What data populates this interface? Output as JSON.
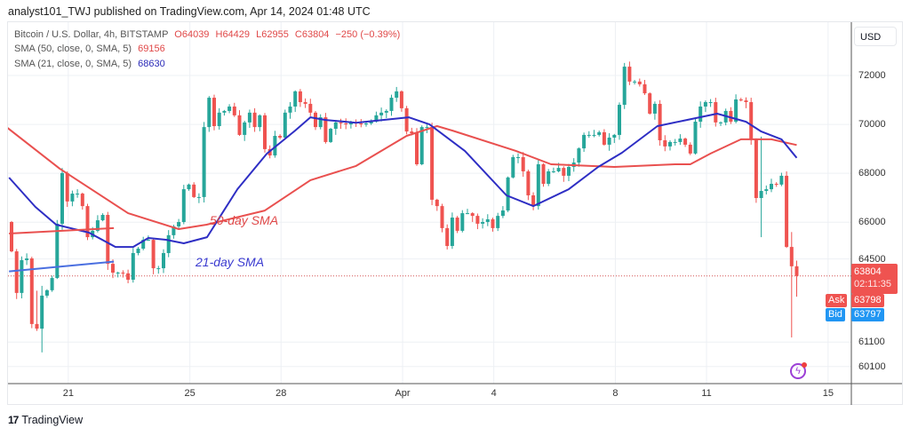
{
  "header": {
    "published": "analyst101_TWJ published on TradingView.com, Apr 14, 2024 01:48 UTC"
  },
  "legend": {
    "symbol": "Bitcoin / U.S. Dollar, 4h, BITSTAMP",
    "open": "O64039",
    "high": "H64429",
    "low": "L62955",
    "close": "C63804",
    "change": "−250 (−0.39%)",
    "sma50_label": "SMA (50, close, 0, SMA, 5)",
    "sma50_value": "69156",
    "sma21_label": "SMA (21, close, 0, SMA, 5)",
    "sma21_value": "68630"
  },
  "price_axis": {
    "currency": "USD",
    "last_price": "63804",
    "countdown": "02:11:35",
    "ask_label": "Ask",
    "ask_value": "63798",
    "bid_label": "Bid",
    "bid_value": "63797"
  },
  "annotations": {
    "sma50_text": "50-day SMA",
    "sma21_text": "21-day SMA"
  },
  "footer": {
    "brand": "TradingView",
    "brand_mark": "17"
  },
  "colors": {
    "up": "#26a69a",
    "down": "#ef5350",
    "sma50": "#e9504f",
    "sma21": "#2e2ec4",
    "ask": "#ef5350",
    "bid": "#2196f3"
  },
  "chart_data": {
    "type": "candlestick",
    "title": "Bitcoin / U.S. Dollar, 4h, BITSTAMP",
    "ylabel": "USD",
    "ylim": [
      59800,
      74200
    ],
    "yticks": [
      72000,
      70000,
      68000,
      66000,
      64500,
      61100,
      60100
    ],
    "ytick_labels": [
      "72000",
      "70000",
      "68000",
      "66000",
      "64500",
      "61100",
      "60100"
    ],
    "xticks": [
      {
        "label": "21",
        "index": 11.2
      },
      {
        "label": "25",
        "index": 35.2
      },
      {
        "label": "28",
        "index": 53.2
      },
      {
        "label": "Apr",
        "index": 77.2
      },
      {
        "label": "4",
        "index": 95.2
      },
      {
        "label": "8",
        "index": 119.2
      },
      {
        "label": "11",
        "index": 137.2
      },
      {
        "label": "15",
        "index": 161.2
      }
    ],
    "first_open": 66010,
    "close": [
      64810,
      63110,
      64450,
      64520,
      61840,
      61650,
      63000,
      63220,
      63720,
      65940,
      68010,
      66850,
      67170,
      67170,
      66660,
      65390,
      65650,
      66080,
      66300,
      64300,
      63940,
      63940,
      63910,
      63650,
      64740,
      64920,
      65280,
      65280,
      64120,
      64120,
      64740,
      65470,
      65830,
      66010,
      67350,
      67540,
      67030,
      67030,
      69890,
      71090,
      69930,
      70480,
      70550,
      70730,
      70370,
      69570,
      70080,
      70480,
      69890,
      70370,
      68990,
      68730,
      69530,
      69460,
      70480,
      70730,
      71350,
      70910,
      70840,
      70480,
      69890,
      70290,
      69280,
      69820,
      70080,
      70040,
      70000,
      70080,
      70040,
      70000,
      70040,
      70110,
      70370,
      70480,
      70550,
      71090,
      71350,
      70660,
      69710,
      69640,
      68370,
      69890,
      69890,
      66920,
      66660,
      65760,
      65030,
      66190,
      65650,
      66370,
      66370,
      66260,
      65940,
      66010,
      66120,
      65760,
      66260,
      66480,
      67830,
      68660,
      68660,
      68080,
      67100,
      66660,
      68370,
      67570,
      68080,
      68080,
      68220,
      67900,
      68260,
      68440,
      69020,
      69570,
      69570,
      69570,
      69680,
      69170,
      69460,
      69570,
      70800,
      72360,
      71750,
      71750,
      71640,
      71270,
      70440,
      70840,
      69350,
      69100,
      69280,
      69280,
      69420,
      69170,
      68810,
      70110,
      70730,
      70910,
      70910,
      70080,
      70080,
      70550,
      70110,
      71020,
      70980,
      70910,
      69390,
      66990,
      67280,
      67350,
      67570,
      67540,
      67900,
      64990,
      64200,
      63804
    ],
    "wick_overrides": {
      "5": [
        63200,
        61560
      ],
      "6": [
        63400,
        60680
      ],
      "148": [
        69500,
        65390
      ],
      "154": [
        65600,
        61290
      ],
      "155": [
        64429,
        62955
      ]
    },
    "series": [
      {
        "name": "SMA (50, close, 0, SMA, 5)",
        "points": [
          [
            -1,
            69890
          ],
          [
            9.5,
            68190
          ],
          [
            23,
            66370
          ],
          [
            33,
            65720
          ],
          [
            38.5,
            65900
          ],
          [
            50,
            66480
          ],
          [
            59,
            67720
          ],
          [
            68,
            68300
          ],
          [
            78,
            69530
          ],
          [
            84,
            69930
          ],
          [
            87,
            69750
          ],
          [
            99.5,
            68920
          ],
          [
            106.5,
            68370
          ],
          [
            119,
            68260
          ],
          [
            131,
            68370
          ],
          [
            134,
            68370
          ],
          [
            138,
            68810
          ],
          [
            144,
            69390
          ],
          [
            150,
            69390
          ],
          [
            155,
            69156
          ]
        ]
      },
      {
        "name": "SMA (21, close, 0, SMA, 5)",
        "points": [
          [
            -0.5,
            67825
          ],
          [
            4.7,
            66627
          ],
          [
            8.8,
            65900
          ],
          [
            15.3,
            65575
          ],
          [
            20.5,
            64990
          ],
          [
            24,
            64990
          ],
          [
            27,
            65357
          ],
          [
            30.5,
            65285
          ],
          [
            34,
            65140
          ],
          [
            38.6,
            65390
          ],
          [
            44.6,
            67353
          ],
          [
            50.4,
            68805
          ],
          [
            56,
            69750
          ],
          [
            59,
            70290
          ],
          [
            62,
            70180
          ],
          [
            68,
            70070
          ],
          [
            78.4,
            70290
          ],
          [
            82.5,
            70000
          ],
          [
            89.5,
            68910
          ],
          [
            97.7,
            67100
          ],
          [
            103,
            66660
          ],
          [
            110,
            67350
          ],
          [
            115.8,
            68260
          ],
          [
            120.5,
            68840
          ],
          [
            127.5,
            69930
          ],
          [
            133.3,
            70180
          ],
          [
            139.3,
            70440
          ],
          [
            145,
            70110
          ],
          [
            148,
            69710
          ],
          [
            152,
            69390
          ],
          [
            155,
            68630
          ]
        ]
      }
    ],
    "drawn_lines": [
      {
        "name": "50-day SMA line",
        "from": [
          -0.5,
          65540
        ],
        "to": [
          20.2,
          65760
        ]
      },
      {
        "name": "21-day SMA line",
        "from": [
          -0.5,
          63990
        ],
        "to": [
          20.2,
          64390
        ]
      }
    ],
    "last_price_line": 63804
  }
}
